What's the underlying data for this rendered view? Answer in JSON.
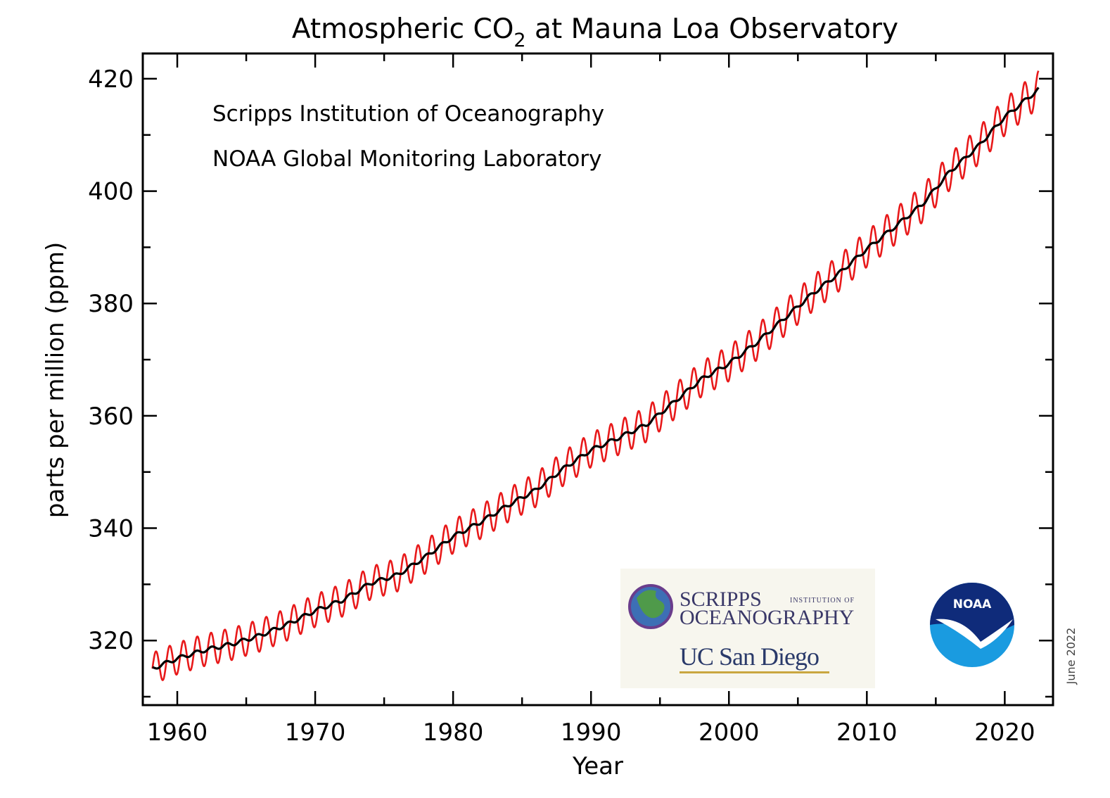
{
  "chart_data": {
    "type": "line",
    "title": {
      "prefix": "Atmospheric CO",
      "subscript": "2",
      "suffix": " at Mauna Loa Observatory"
    },
    "annotations": [
      "Scripps Institution of Oceanography",
      "NOAA Global Monitoring Laboratory"
    ],
    "xlabel": "Year",
    "ylabel": "parts per million (ppm)",
    "xlim": [
      1957.5,
      2023.5
    ],
    "ylim": [
      308.5,
      424.5
    ],
    "x_ticks": [
      1960,
      1970,
      1980,
      1990,
      2000,
      2010,
      2020
    ],
    "y_ticks": [
      320,
      340,
      360,
      380,
      400,
      420
    ],
    "grid": false,
    "series": [
      {
        "role": "monthly mean (seasonal cycle)",
        "color": "#e8191a",
        "x_range": [
          1958.2,
          2022.45
        ],
        "seasonal_amplitude_ppm": 3.3,
        "note": "x is years; trend follows the deseasonalized series below"
      },
      {
        "role": "seasonally corrected trend",
        "color": "#000000",
        "x": [
          1958.2,
          1960,
          1962,
          1964,
          1966,
          1968,
          1970,
          1972,
          1974,
          1976,
          1978,
          1980,
          1982,
          1984,
          1986,
          1988,
          1990,
          1992,
          1994,
          1996,
          1998,
          2000,
          2002,
          2004,
          2006,
          2008,
          2010,
          2012,
          2014,
          2016,
          2018,
          2020,
          2022.45
        ],
        "y": [
          315.0,
          316.8,
          318.3,
          319.4,
          320.9,
          322.9,
          325.3,
          327.2,
          330.2,
          331.7,
          334.9,
          338.5,
          341.1,
          344.1,
          346.8,
          350.6,
          353.9,
          356.1,
          358.4,
          362.4,
          366.5,
          369.3,
          373.0,
          377.3,
          381.6,
          385.4,
          389.7,
          393.6,
          397.6,
          403.4,
          407.8,
          413.2,
          418.1
        ]
      }
    ],
    "logos": [
      "SCRIPPS",
      "INSTITUTION OF",
      "OCEANOGRAPHY",
      "UC San Diego",
      "NOAA"
    ],
    "date_stamp": "June 2022"
  }
}
